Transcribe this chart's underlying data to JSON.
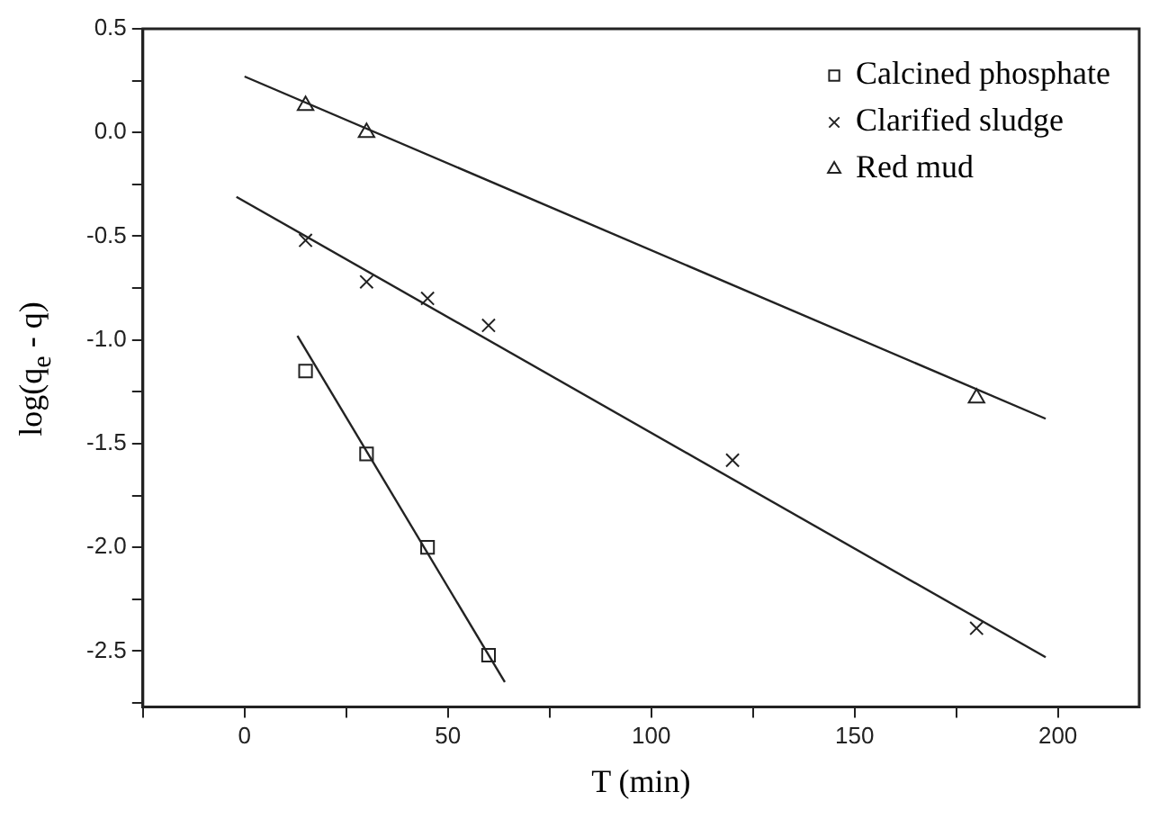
{
  "chart_data": {
    "type": "scatter",
    "xlabel": "T (min)",
    "ylabel": "log(q$_{e}$ - q)",
    "xlim": [
      -25,
      220
    ],
    "ylim": [
      -2.77,
      0.5
    ],
    "xticks": [
      {
        "value": -25,
        "label": null
      },
      0,
      {
        "value": 25,
        "label": null
      },
      50,
      {
        "value": 75,
        "label": null
      },
      100,
      {
        "value": 125,
        "label": null
      },
      150,
      {
        "value": 175,
        "label": null
      },
      200
    ],
    "yticks": [
      {
        "value": -2.75,
        "label": null
      },
      {
        "value": -2.5,
        "label": "-2.5"
      },
      {
        "value": -2.25,
        "label": null
      },
      {
        "value": -2,
        "label": "-2.0"
      },
      {
        "value": -1.75,
        "label": null
      },
      {
        "value": -1.5,
        "label": "-1.5"
      },
      {
        "value": -1.25,
        "label": null
      },
      {
        "value": -1,
        "label": "-1.0"
      },
      {
        "value": -0.75,
        "label": null
      },
      {
        "value": -0.5,
        "label": "-0.5"
      },
      {
        "value": -0.25,
        "label": null
      },
      {
        "value": 0,
        "label": "0.0"
      },
      {
        "value": 0.25,
        "label": null
      },
      {
        "value": 0.5,
        "label": "0.5"
      }
    ],
    "grid": false,
    "legend": "top right",
    "series": [
      {
        "name": "Calcined phosphate",
        "type": "scatter",
        "marker": "square",
        "color": "#222222",
        "x": [
          15,
          30,
          45,
          60
        ],
        "values": [
          -1.15,
          -1.55,
          -2.0,
          -2.52
        ]
      },
      {
        "name": "Clarified sludge",
        "type": "scatter",
        "marker": "cross",
        "color": "#222222",
        "x": [
          15,
          30,
          45,
          60,
          120,
          180
        ],
        "values": [
          -0.52,
          -0.72,
          -0.8,
          -0.93,
          -1.58,
          -2.39
        ]
      },
      {
        "name": "Red mud",
        "type": "scatter",
        "marker": "triangle",
        "color": "#222222",
        "x": [
          15,
          30,
          180
        ],
        "values": [
          0.13,
          0.0,
          -1.28
        ]
      },
      {
        "type": "line",
        "marker": "none",
        "color": "#222222",
        "x": [
          13,
          64
        ],
        "values": [
          -0.98,
          -2.65
        ]
      },
      {
        "type": "line",
        "marker": "none",
        "color": "#222222",
        "x": [
          -2,
          197
        ],
        "values": [
          -0.31,
          -2.53
        ]
      },
      {
        "type": "line",
        "marker": "none",
        "color": "#222222",
        "x": [
          0,
          197
        ],
        "values": [
          0.27,
          -1.38
        ]
      }
    ]
  }
}
